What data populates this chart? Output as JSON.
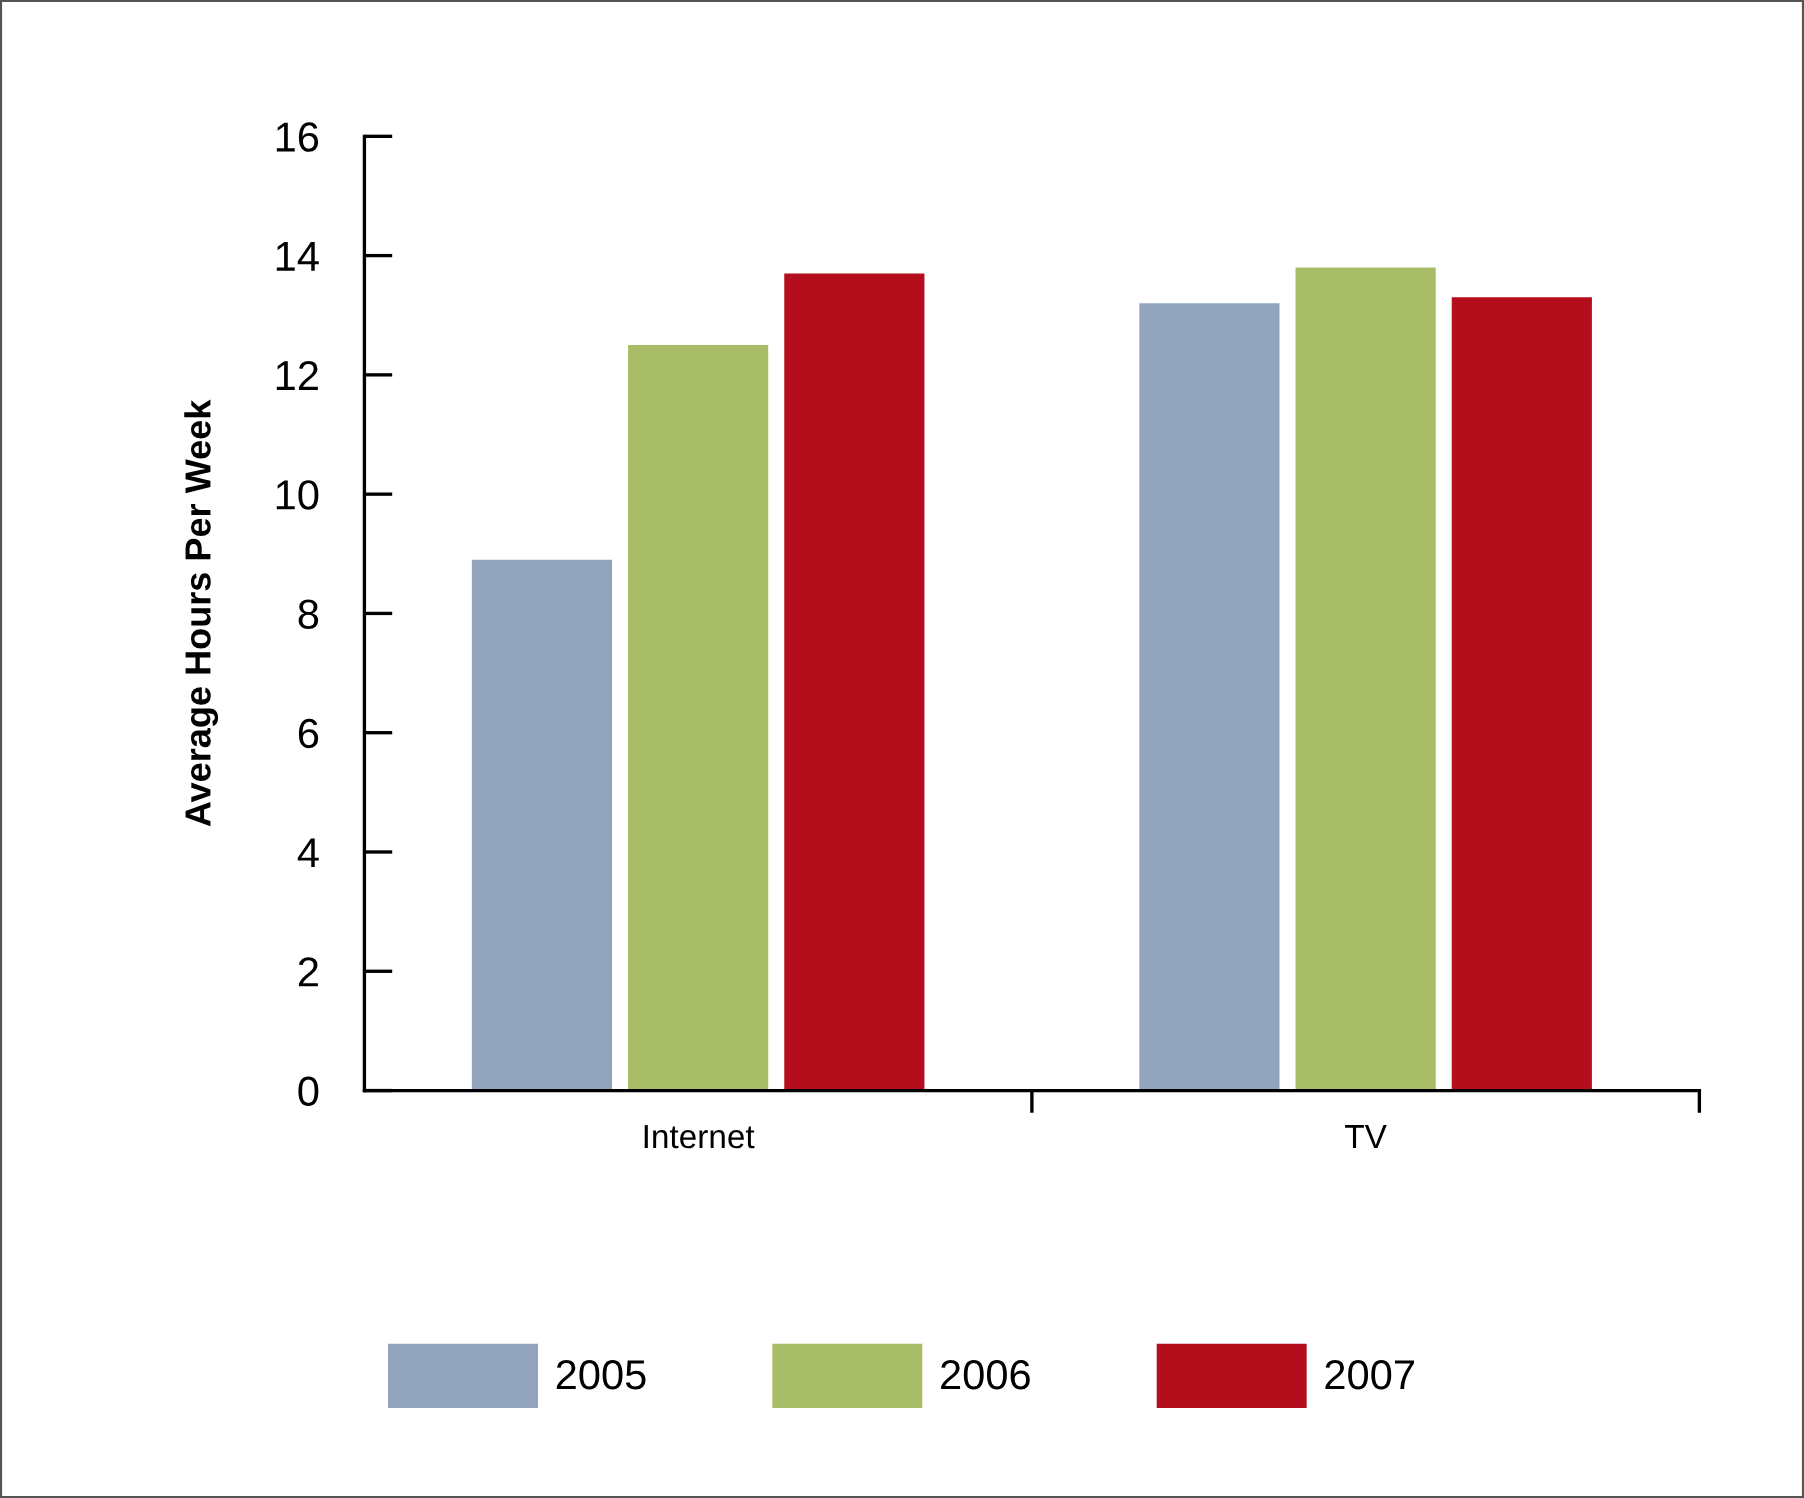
{
  "chart_data": {
    "type": "bar",
    "ylabel": "Average Hours Per Week",
    "categories": [
      "Internet",
      "TV"
    ],
    "series": [
      {
        "name": "2005",
        "color": "#91a3bd",
        "values": [
          8.9,
          13.2
        ]
      },
      {
        "name": "2006",
        "color": "#a9bd68",
        "values": [
          12.5,
          13.8
        ]
      },
      {
        "name": "2007",
        "color": "#b40d1c",
        "values": [
          13.7,
          13.3
        ]
      }
    ],
    "ylim": [
      0,
      16
    ],
    "yticks": [
      0,
      2,
      4,
      6,
      8,
      10,
      12,
      14,
      16
    ],
    "grid": false,
    "legend": "bottom"
  }
}
